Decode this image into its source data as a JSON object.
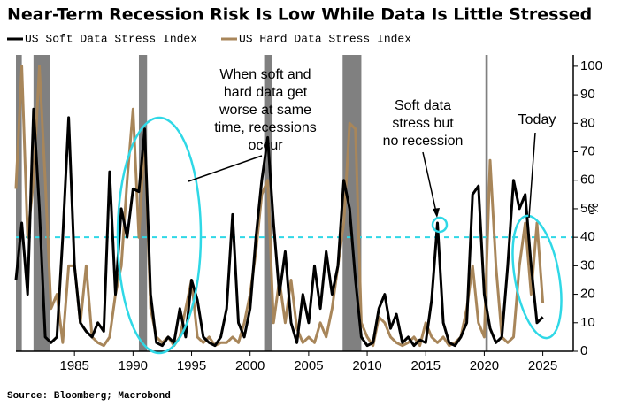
{
  "chart_data": {
    "type": "line",
    "title": "Near-Term Recession Risk Is Low While Data Is Little Stressed",
    "source": "Source: Bloomberg; Macrobond",
    "y_axis_label": "%",
    "x": [
      1980,
      1980.5,
      1981,
      1981.5,
      1982,
      1982.5,
      1983,
      1983.5,
      1984,
      1984.5,
      1985,
      1985.5,
      1986,
      1986.5,
      1987,
      1987.5,
      1988,
      1988.5,
      1989,
      1989.5,
      1990,
      1990.5,
      1991,
      1991.5,
      1992,
      1992.5,
      1993,
      1993.5,
      1994,
      1994.5,
      1995,
      1995.5,
      1996,
      1996.5,
      1997,
      1997.5,
      1998,
      1998.5,
      1999,
      1999.5,
      2000,
      2000.5,
      2001,
      2001.5,
      2002,
      2002.5,
      2003,
      2003.5,
      2004,
      2004.5,
      2005,
      2005.5,
      2006,
      2006.5,
      2007,
      2007.5,
      2008,
      2008.5,
      2009,
      2009.5,
      2010,
      2010.5,
      2011,
      2011.5,
      2012,
      2012.5,
      2013,
      2013.5,
      2014,
      2014.5,
      2015,
      2015.5,
      2016,
      2016.5,
      2017,
      2017.5,
      2018,
      2018.5,
      2019,
      2019.5,
      2020,
      2020.5,
      2021,
      2021.5,
      2022,
      2022.5,
      2023,
      2023.5,
      2024,
      2024.5,
      2025
    ],
    "series": [
      {
        "name": "US Soft Data Stress Index",
        "color": "#000000",
        "values": [
          25,
          45,
          20,
          85,
          50,
          5,
          3,
          5,
          40,
          82,
          30,
          10,
          7,
          5,
          10,
          7,
          63,
          20,
          50,
          40,
          57,
          56,
          78,
          20,
          3,
          2,
          5,
          3,
          15,
          5,
          25,
          18,
          5,
          3,
          2,
          5,
          15,
          48,
          10,
          5,
          15,
          40,
          60,
          75,
          45,
          20,
          35,
          10,
          3,
          20,
          10,
          30,
          15,
          35,
          20,
          30,
          60,
          50,
          25,
          5,
          2,
          3,
          15,
          20,
          8,
          13,
          3,
          5,
          2,
          4,
          3,
          18,
          45,
          10,
          3,
          2,
          5,
          10,
          55,
          58,
          20,
          8,
          3,
          5,
          30,
          60,
          50,
          55,
          30,
          10,
          12
        ]
      },
      {
        "name": "US Hard Data Stress Index",
        "color": "#a8865a",
        "values": [
          57,
          100,
          40,
          60,
          100,
          60,
          15,
          20,
          3,
          30,
          30,
          10,
          30,
          5,
          3,
          2,
          5,
          20,
          30,
          60,
          85,
          40,
          75,
          15,
          5,
          3,
          5,
          2,
          5,
          15,
          25,
          5,
          3,
          5,
          2,
          3,
          3,
          5,
          3,
          10,
          20,
          35,
          55,
          60,
          10,
          25,
          10,
          25,
          8,
          3,
          5,
          3,
          10,
          5,
          15,
          30,
          45,
          80,
          78,
          10,
          5,
          2,
          12,
          10,
          5,
          3,
          2,
          3,
          5,
          2,
          10,
          5,
          3,
          5,
          2,
          3,
          5,
          15,
          30,
          10,
          5,
          67,
          30,
          5,
          3,
          5,
          30,
          45,
          20,
          45,
          17
        ]
      }
    ],
    "recessions": [
      [
        1980.0,
        1980.5
      ],
      [
        1981.5,
        1982.9
      ],
      [
        1990.5,
        1991.2
      ],
      [
        2001.2,
        2001.9
      ],
      [
        2007.9,
        2009.5
      ],
      [
        2020.1,
        2020.3
      ]
    ],
    "threshold": 40,
    "annotations": [
      {
        "lines": [
          "When soft and",
          "hard data get",
          "worse at same",
          "time, recessions",
          "occur"
        ]
      },
      {
        "lines": [
          "Soft data",
          "stress but",
          "no recession"
        ]
      },
      {
        "lines": [
          "Today"
        ]
      }
    ],
    "xlim": [
      1980,
      2027.6
    ],
    "ylim": [
      0,
      104
    ],
    "xticks": [
      1985,
      1990,
      1995,
      2000,
      2005,
      2010,
      2015,
      2020,
      2025
    ],
    "yticks": [
      0,
      10,
      20,
      30,
      40,
      50,
      60,
      70,
      80,
      90,
      100
    ]
  }
}
